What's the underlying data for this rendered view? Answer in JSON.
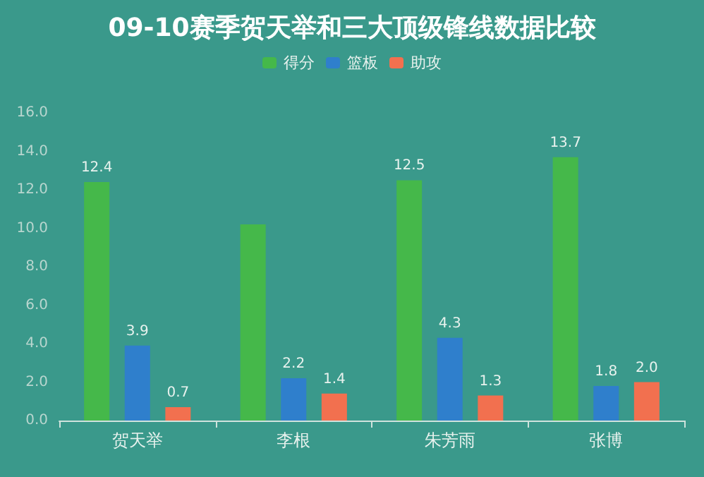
{
  "chart_data": {
    "type": "bar",
    "title": "09-10赛季贺天举和三大顶级锋线数据比较",
    "categories": [
      "贺天举",
      "李根",
      "朱芳雨",
      "张博"
    ],
    "series": [
      {
        "name": "得分",
        "color": "#45b84a",
        "values": [
          12.4,
          10.2,
          12.5,
          13.7
        ],
        "value_labels": [
          "12.4",
          null,
          "12.5",
          "13.7"
        ]
      },
      {
        "name": "篮板",
        "color": "#2f7fcc",
        "values": [
          3.9,
          2.2,
          4.3,
          1.8
        ],
        "value_labels": [
          "3.9",
          "2.2",
          "4.3",
          "1.8"
        ]
      },
      {
        "name": "助攻",
        "color": "#f2704f",
        "values": [
          0.7,
          1.4,
          1.3,
          2.0
        ],
        "value_labels": [
          "0.7",
          "1.4",
          "1.3",
          "2.0"
        ]
      }
    ],
    "ylim": [
      0,
      16
    ],
    "yticks": [
      {
        "value": 0,
        "label": "0.0"
      },
      {
        "value": 2,
        "label": "2.0"
      },
      {
        "value": 4,
        "label": "4.0"
      },
      {
        "value": 6,
        "label": "6.0"
      },
      {
        "value": 8,
        "label": "8.0"
      },
      {
        "value": 10,
        "label": "10.0"
      },
      {
        "value": 12,
        "label": "12.0"
      },
      {
        "value": 14,
        "label": "14.0"
      },
      {
        "value": 16,
        "label": "16.0"
      }
    ],
    "grid": false,
    "legend": "top"
  }
}
